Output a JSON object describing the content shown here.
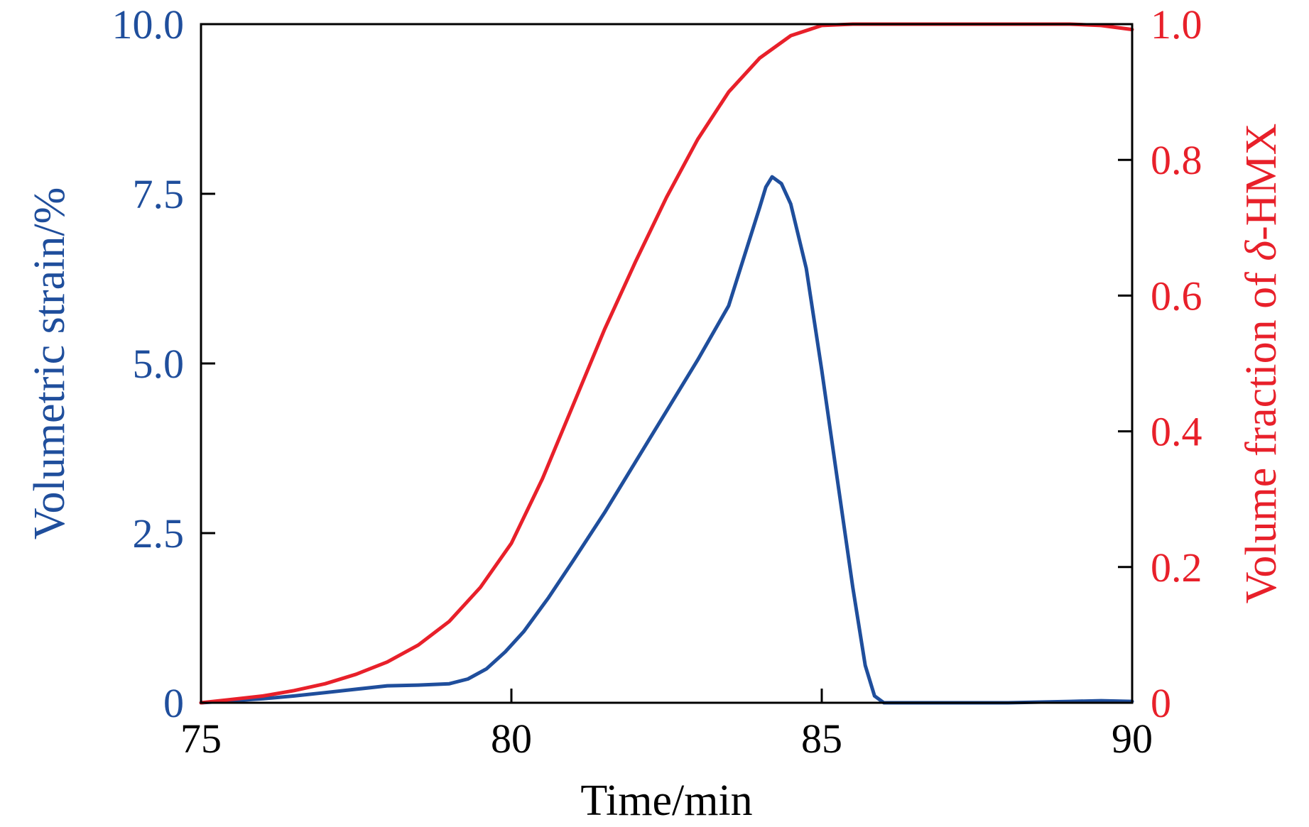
{
  "chart_data": {
    "type": "line",
    "xlabel": "Time/min",
    "ylabel_left": "Volumetric strain/%",
    "ylabel_right_prefix": "Volume fraction of ",
    "ylabel_right_symbol": "δ",
    "ylabel_right_suffix": "-HMX",
    "xlim": [
      75,
      90
    ],
    "ylim_left": [
      0,
      10.0
    ],
    "ylim_right": [
      0,
      1.0
    ],
    "x_ticks": [
      "75",
      "80",
      "85",
      "90"
    ],
    "y_left_ticks": [
      "0",
      "2.5",
      "5.0",
      "7.5",
      "10.0"
    ],
    "y_right_ticks": [
      "0",
      "0.2",
      "0.4",
      "0.6",
      "0.8",
      "1.0"
    ],
    "grid": false,
    "colors": {
      "left": "#1f4e9c",
      "right": "#e8202a",
      "frame": "#000000"
    },
    "series": [
      {
        "axis": "left",
        "color": "#1f4e9c",
        "points": [
          [
            75.0,
            0.0
          ],
          [
            75.5,
            0.03
          ],
          [
            76.0,
            0.06
          ],
          [
            76.5,
            0.1
          ],
          [
            77.0,
            0.15
          ],
          [
            77.5,
            0.2
          ],
          [
            78.0,
            0.25
          ],
          [
            78.5,
            0.26
          ],
          [
            79.0,
            0.28
          ],
          [
            79.3,
            0.35
          ],
          [
            79.6,
            0.5
          ],
          [
            79.9,
            0.75
          ],
          [
            80.2,
            1.05
          ],
          [
            80.6,
            1.55
          ],
          [
            81.0,
            2.1
          ],
          [
            81.5,
            2.8
          ],
          [
            82.0,
            3.55
          ],
          [
            82.5,
            4.3
          ],
          [
            83.0,
            5.05
          ],
          [
            83.5,
            5.85
          ],
          [
            84.0,
            7.3
          ],
          [
            84.1,
            7.6
          ],
          [
            84.2,
            7.75
          ],
          [
            84.35,
            7.65
          ],
          [
            84.5,
            7.35
          ],
          [
            84.75,
            6.4
          ],
          [
            85.0,
            4.9
          ],
          [
            85.25,
            3.3
          ],
          [
            85.5,
            1.7
          ],
          [
            85.7,
            0.55
          ],
          [
            85.85,
            0.1
          ],
          [
            86.0,
            0.0
          ],
          [
            87.0,
            0.0
          ],
          [
            88.0,
            0.0
          ],
          [
            89.0,
            0.02
          ],
          [
            89.5,
            0.03
          ],
          [
            90.0,
            0.02
          ]
        ]
      },
      {
        "axis": "right",
        "color": "#e8202a",
        "points": [
          [
            75.0,
            0.0
          ],
          [
            75.5,
            0.005
          ],
          [
            76.0,
            0.01
          ],
          [
            76.5,
            0.018
          ],
          [
            77.0,
            0.028
          ],
          [
            77.5,
            0.042
          ],
          [
            78.0,
            0.06
          ],
          [
            78.5,
            0.085
          ],
          [
            79.0,
            0.12
          ],
          [
            79.5,
            0.17
          ],
          [
            80.0,
            0.235
          ],
          [
            80.5,
            0.33
          ],
          [
            81.0,
            0.44
          ],
          [
            81.5,
            0.55
          ],
          [
            82.0,
            0.65
          ],
          [
            82.5,
            0.745
          ],
          [
            83.0,
            0.83
          ],
          [
            83.5,
            0.9
          ],
          [
            84.0,
            0.95
          ],
          [
            84.5,
            0.983
          ],
          [
            85.0,
            0.998
          ],
          [
            85.5,
            1.0
          ],
          [
            86.0,
            1.0
          ],
          [
            87.0,
            1.0
          ],
          [
            88.0,
            1.0
          ],
          [
            89.0,
            1.0
          ],
          [
            89.5,
            0.998
          ],
          [
            90.0,
            0.992
          ]
        ]
      }
    ]
  }
}
